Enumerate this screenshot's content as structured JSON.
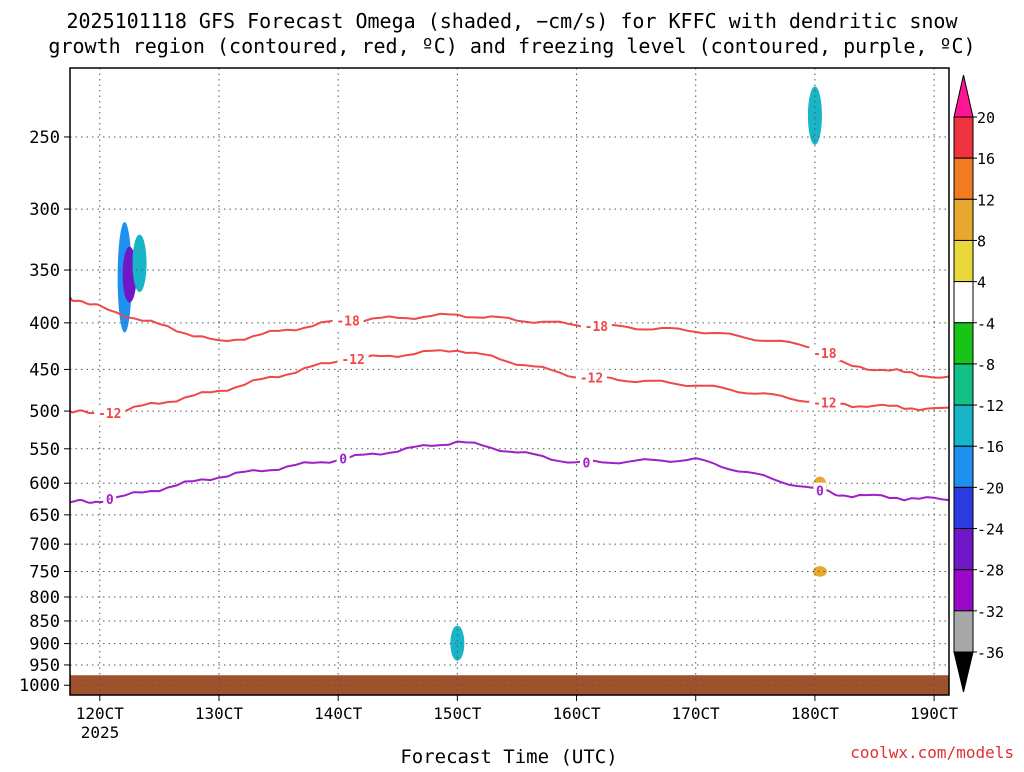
{
  "chart_data": {
    "type": "heatmap",
    "title_line1": "2025101118 GFS Forecast Omega (shaded, −cm/s) for KFFC with dendritic snow",
    "title_line2": "growth region (contoured, red, ºC) and freezing level (contoured, purple, ºC)",
    "xlabel": "Forecast Time (UTC)",
    "year_label": "2025",
    "credit": "coolwx.com/models",
    "grid": true,
    "y_axis": {
      "scale": "log-pressure",
      "range": [
        1025,
        210
      ],
      "tick_values": [
        250,
        300,
        350,
        400,
        450,
        500,
        550,
        600,
        650,
        700,
        750,
        800,
        850,
        900,
        950,
        1000
      ]
    },
    "x_axis": {
      "range": [
        "11/18CT",
        "19/03CT"
      ],
      "tick_labels": [
        "12/0CT",
        "13/0CT",
        "14/0CT",
        "15/0CT",
        "16/0CT",
        "17/0CT",
        "18/0CT",
        "19/0CT"
      ]
    },
    "colorbar": {
      "labels": [
        20,
        16,
        12,
        8,
        4,
        -4,
        -8,
        -12,
        -16,
        -20,
        -24,
        -28,
        -32,
        -36
      ],
      "colors": [
        "#ff1493",
        "#ef3340",
        "#f07b20",
        "#e8a830",
        "#e8d83a",
        "#ffffff",
        "#18c418",
        "#12c088",
        "#18b4c8",
        "#2090f0",
        "#2c3ce0",
        "#7018c8",
        "#9a08c8",
        "#a8a8a8",
        "#000000"
      ],
      "colors_note": "pink top arrow, 20-16 red, 16-12 orange, 12-8 light orange, 8-4 yellow, 4 to -4 white, -4 to -8 green, -8 to -12 teal, -12 to -16 cyan, -16 to -20 blue, -20 to -24 dark blue, -24 to -28 indigo, -28 to -32 purple, -32 to -36 gray, black bottom arrow"
    },
    "contours": [
      {
        "name": "-18",
        "color": "#f04848",
        "labels_at": [
          "14/02CT",
          "16/04CT",
          "18/02CT"
        ],
        "points": [
          [
            "11/18CT",
            375
          ],
          [
            "12/00CT",
            385
          ],
          [
            "13/00CT",
            420
          ],
          [
            "14/00CT",
            398
          ],
          [
            "15/00CT",
            392
          ],
          [
            "16/00CT",
            402
          ],
          [
            "17/00CT",
            408
          ],
          [
            "18/00CT",
            425
          ],
          [
            "18/06CT",
            445
          ],
          [
            "19/03CT",
            460
          ]
        ]
      },
      {
        "name": "-12",
        "color": "#f04848",
        "labels_at": [
          "12/02CT",
          "14/03CT",
          "16/03CT",
          "18/02CT"
        ],
        "points": [
          [
            "11/18CT",
            500
          ],
          [
            "12/00CT",
            505
          ],
          [
            "13/00CT",
            475
          ],
          [
            "14/00CT",
            440
          ],
          [
            "15/00CT",
            428
          ],
          [
            "16/00CT",
            458
          ],
          [
            "17/00CT",
            468
          ],
          [
            "18/00CT",
            488
          ],
          [
            "18/06CT",
            492
          ],
          [
            "19/03CT",
            498
          ]
        ]
      },
      {
        "name": "0",
        "color": "#a020c8",
        "labels_at": [
          "12/02CT",
          "14/01CT",
          "16/02CT",
          "18/01CT"
        ],
        "points": [
          [
            "11/18CT",
            630
          ],
          [
            "12/00CT",
            628
          ],
          [
            "13/00CT",
            590
          ],
          [
            "14/00CT",
            565
          ],
          [
            "15/00CT",
            540
          ],
          [
            "16/00CT",
            570
          ],
          [
            "17/00CT",
            565
          ],
          [
            "18/00CT",
            610
          ],
          [
            "18/06CT",
            618
          ],
          [
            "19/03CT",
            626
          ]
        ]
      }
    ],
    "omega_shaded_regions": [
      {
        "x": "12/05CT",
        "p_top": 310,
        "p_bottom": 410,
        "level": "-16"
      },
      {
        "x": "12/06CT",
        "p_top": 330,
        "p_bottom": 380,
        "level": "-24"
      },
      {
        "x": "12/08CT",
        "p_top": 320,
        "p_bottom": 370,
        "level": "-12"
      },
      {
        "x": "18/00CT",
        "p_top": 220,
        "p_bottom": 255,
        "level": "-12"
      },
      {
        "x": "15/00CT",
        "p_top": 860,
        "p_bottom": 940,
        "level": "-12"
      },
      {
        "x": "18/01CT",
        "p_top": 590,
        "p_bottom": 620,
        "level": "12"
      },
      {
        "x": "18/01CT",
        "p_top": 740,
        "p_bottom": 760,
        "level": "12"
      }
    ],
    "ground_band": {
      "p_top": 975,
      "p_bottom": 1025,
      "color": "#a0522d"
    }
  }
}
